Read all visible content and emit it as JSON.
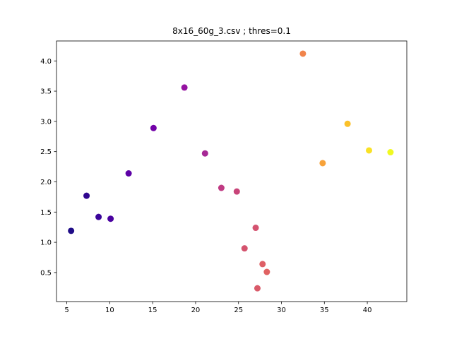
{
  "chart_data": {
    "type": "scatter",
    "title": "8x16_60g_3.csv ; thres=0.1",
    "xlabel": "",
    "ylabel": "",
    "xlim": [
      3.8,
      44.6
    ],
    "ylim": [
      0.02,
      4.33
    ],
    "xticks": [
      5,
      10,
      15,
      20,
      25,
      30,
      35,
      40
    ],
    "xtick_labels": [
      "5",
      "10",
      "15",
      "20",
      "25",
      "30",
      "35",
      "40"
    ],
    "yticks": [
      0.5,
      1.0,
      1.5,
      2.0,
      2.5,
      3.0,
      3.5,
      4.0
    ],
    "ytick_labels": [
      "0.5",
      "1.0",
      "1.5",
      "2.0",
      "2.5",
      "3.0",
      "3.5",
      "4.0"
    ],
    "grid": false,
    "legend": "none",
    "colormap": "plasma",
    "points": [
      {
        "x": 5.5,
        "y": 1.19,
        "color": "#1f0c87"
      },
      {
        "x": 7.3,
        "y": 1.77,
        "color": "#2f068f"
      },
      {
        "x": 8.7,
        "y": 1.42,
        "color": "#3a049a"
      },
      {
        "x": 10.1,
        "y": 1.39,
        "color": "#4a02a0"
      },
      {
        "x": 12.2,
        "y": 2.14,
        "color": "#5d01a6"
      },
      {
        "x": 15.1,
        "y": 2.89,
        "color": "#7201a8"
      },
      {
        "x": 18.7,
        "y": 3.56,
        "color": "#9512a1"
      },
      {
        "x": 21.1,
        "y": 2.47,
        "color": "#a62895"
      },
      {
        "x": 23.0,
        "y": 1.9,
        "color": "#c03a83"
      },
      {
        "x": 24.8,
        "y": 1.84,
        "color": "#c84479"
      },
      {
        "x": 25.7,
        "y": 0.9,
        "color": "#d4536e"
      },
      {
        "x": 27.0,
        "y": 1.24,
        "color": "#d45370"
      },
      {
        "x": 27.2,
        "y": 0.24,
        "color": "#d95a69"
      },
      {
        "x": 27.8,
        "y": 0.64,
        "color": "#de5f66"
      },
      {
        "x": 28.3,
        "y": 0.51,
        "color": "#e06262"
      },
      {
        "x": 32.5,
        "y": 4.12,
        "color": "#f1844b"
      },
      {
        "x": 34.8,
        "y": 2.31,
        "color": "#f7a23a"
      },
      {
        "x": 37.7,
        "y": 2.96,
        "color": "#fbc12a"
      },
      {
        "x": 40.2,
        "y": 2.52,
        "color": "#f9e125"
      },
      {
        "x": 42.7,
        "y": 2.49,
        "color": "#f0f921"
      }
    ]
  }
}
